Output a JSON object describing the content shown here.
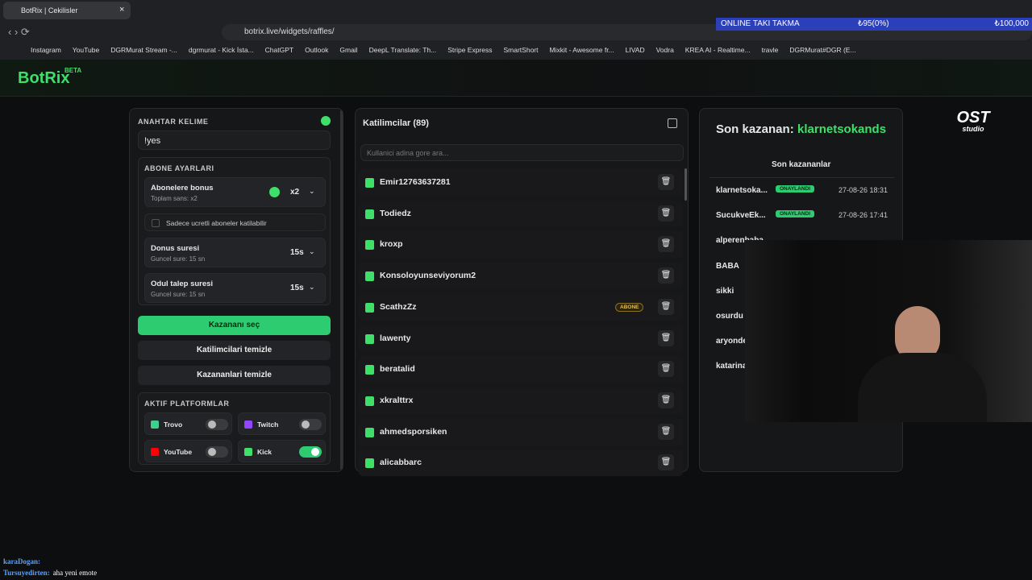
{
  "browser": {
    "tab_title": "BotRix | Cekilisler",
    "url": "botrix.live/widgets/raffles/",
    "bookmarks": [
      "Instagram",
      "YouTube",
      "DGRMurat Stream -...",
      "dgrmurat - Kick İsta...",
      "ChatGPT",
      "Outlook",
      "Gmail",
      "DeepL Translate: Th...",
      "Stripe Express",
      "SmartShort",
      "Mixkit - Awesome fr...",
      "LIVAD",
      "Vodra",
      "KREA AI - Realtime...",
      "travle",
      "DGRMurat#DGR (E..."
    ]
  },
  "overlay": {
    "goal": "ONLINE TAKI TAKMA",
    "current": "₺95(0%)",
    "target": "₺100,000"
  },
  "logo": {
    "name": "BotRix",
    "badge": "BETA"
  },
  "studio": {
    "name": "OST",
    "sub": "studio"
  },
  "settings": {
    "keyword_label": "ANAHTAR KELIME",
    "keyword": "!yes",
    "subscriber_label": "ABONE AYARLARI",
    "bonus": {
      "label": "Abonelere bonus",
      "sub": "Toplam sans: x2",
      "value": "x2"
    },
    "paid_only": "Sadece ucretli aboneler katilabilir",
    "timers": [
      {
        "label": "Donus suresi",
        "sub": "Guncel sure: 15 sn",
        "value": "15s"
      },
      {
        "label": "Odul talep suresi",
        "sub": "Guncel sure: 15 sn",
        "value": "15s"
      }
    ],
    "buttons": [
      "Kazananı seç",
      "Katilimcilari temizle",
      "Kazananlari temizle"
    ],
    "platforms_label": "AKTIF PLATFORMLAR",
    "platforms": [
      {
        "name": "Trovo",
        "enabled": false
      },
      {
        "name": "Twitch",
        "enabled": false
      },
      {
        "name": "YouTube",
        "enabled": false
      },
      {
        "name": "Kick",
        "enabled": true
      }
    ]
  },
  "participants": {
    "title": "Katilimcilar (89)",
    "search": "Kullanici adina gore ara...",
    "badge": "ABONE",
    "names": [
      "Emir12763637281",
      "Todiedz",
      "kroxp",
      "Konsoloyunseviyorum2",
      "ScathzZz",
      "lawenty",
      "beratalid",
      "xkralttrx",
      "ahmedsporsiken",
      "alicabbarc"
    ],
    "subscriber": [
      false,
      false,
      false,
      false,
      true,
      false,
      false,
      false,
      false,
      false
    ]
  },
  "winners": {
    "last_label": "Son kazanan:",
    "last": "klarnetsokands",
    "list_title": "Son kazananlar",
    "rows": [
      {
        "name": "klarnetsoka...",
        "status": "ONAYLANDI",
        "date": "27-08-26 18:31"
      },
      {
        "name": "SucukveEk...",
        "status": "ONAYLANDI",
        "date": "27-08-26 17:41"
      },
      {
        "name": "alperenbaba"
      },
      {
        "name": "BABA"
      },
      {
        "name": "sikki"
      },
      {
        "name": "osurdu"
      },
      {
        "name": "aryonde"
      },
      {
        "name": "katarina"
      }
    ]
  },
  "chat": {
    "lines": [
      {
        "user": "karaDogan:",
        "text": ""
      },
      {
        "user": "Tursuyedirten:",
        "text": "aha yeni emote"
      }
    ]
  }
}
